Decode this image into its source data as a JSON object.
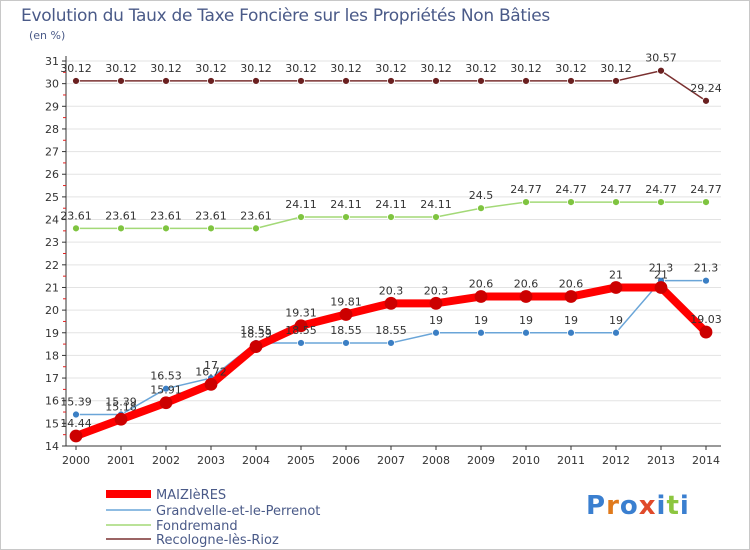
{
  "title": "Evolution du Taux de Taxe Foncière sur les Propriétés Non Bâties",
  "subtitle": "(en %)",
  "watermark": {
    "letters": [
      "P",
      "r",
      "o",
      "x",
      "i",
      "t",
      "i"
    ],
    "colors": [
      "#3a7fd0",
      "#e07a1c",
      "#3a7fd0",
      "#e04a2a",
      "#3a7fd0",
      "#8cc63f",
      "#3a7fd0"
    ]
  },
  "colors": {
    "axis": "#333333",
    "grid": "#e3e3e3",
    "tickRed": "#e02020"
  },
  "chart_data": {
    "type": "line",
    "title": "Evolution du Taux de Taxe Foncière sur les Propriétés Non Bâties",
    "ylabel": "(en %)",
    "xlabel": "",
    "categories": [
      "2000",
      "2001",
      "2002",
      "2003",
      "2004",
      "2005",
      "2006",
      "2007",
      "2008",
      "2009",
      "2010",
      "2011",
      "2012",
      "2013",
      "2014"
    ],
    "ylim": [
      14,
      31
    ],
    "yticks": [
      14,
      15,
      16,
      17,
      18,
      19,
      20,
      21,
      22,
      23,
      24,
      25,
      26,
      27,
      28,
      29,
      30,
      31
    ],
    "legend_position": "bottom-left",
    "series": [
      {
        "name": "MAIZIèRES",
        "color": "#ff0000",
        "marker": "#cc0000",
        "width": 8,
        "values": [
          14.44,
          15.18,
          15.91,
          16.72,
          18.39,
          19.31,
          19.81,
          20.3,
          20.3,
          20.6,
          20.6,
          20.6,
          21,
          21,
          19.03
        ],
        "labels": [
          "14.44",
          "15.18",
          "15.91",
          "16.72",
          "18.39",
          "19.31",
          "19.81",
          "20.3",
          "20.3",
          "20.6",
          "20.6",
          "20.6",
          "21",
          "21",
          "19.03"
        ]
      },
      {
        "name": "Grandvelle-et-le-Perrenot",
        "color": "#6aa5d8",
        "marker": "#3b7fc4",
        "width": 1.5,
        "values": [
          15.39,
          15.39,
          16.53,
          17,
          18.55,
          18.55,
          18.55,
          18.55,
          19,
          19,
          19,
          19,
          19,
          21.3,
          21.3
        ],
        "labels": [
          "15.39",
          "15.39",
          "16.53",
          "17",
          "18.55",
          "18.55",
          "18.55",
          "18.55",
          "19",
          "19",
          "19",
          "19",
          "19",
          "21.3",
          "21.3"
        ]
      },
      {
        "name": "Fondremand",
        "color": "#a3d977",
        "marker": "#7fc440",
        "width": 1.5,
        "values": [
          23.61,
          23.61,
          23.61,
          23.61,
          23.61,
          24.11,
          24.11,
          24.11,
          24.11,
          24.5,
          24.77,
          24.77,
          24.77,
          24.77,
          24.77
        ],
        "labels": [
          "23.61",
          "23.61",
          "23.61",
          "23.61",
          "23.61",
          "24.11",
          "24.11",
          "24.11",
          "24.11",
          "24.5",
          "24.77",
          "24.77",
          "24.77",
          "24.77",
          "24.77"
        ]
      },
      {
        "name": "Recologne-lès-Rioz",
        "color": "#7a3030",
        "marker": "#6a2020",
        "width": 1.5,
        "values": [
          30.12,
          30.12,
          30.12,
          30.12,
          30.12,
          30.12,
          30.12,
          30.12,
          30.12,
          30.12,
          30.12,
          30.12,
          30.12,
          30.57,
          29.24
        ],
        "labels": [
          "30.12",
          "30.12",
          "30.12",
          "30.12",
          "30.12",
          "30.12",
          "30.12",
          "30.12",
          "30.12",
          "30.12",
          "30.12",
          "30.12",
          "30.12",
          "30.57",
          "29.24"
        ]
      }
    ]
  }
}
